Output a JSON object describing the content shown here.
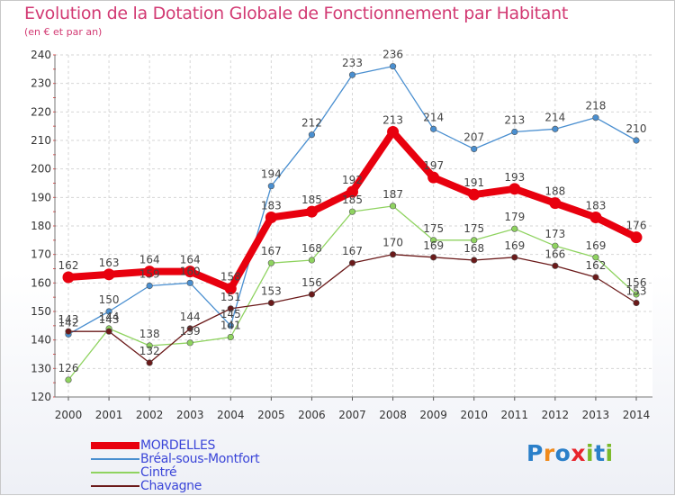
{
  "title": "Evolution de la Dotation Globale de Fonctionnement par Habitant",
  "subtitle": "(en € et par an)",
  "logo": {
    "letters": [
      "P",
      "r",
      "o",
      "x",
      "i",
      "t",
      "i"
    ],
    "colors": [
      "#2a7fc9",
      "#f08a1c",
      "#2a7fc9",
      "#e8242c",
      "#7ab929",
      "#2a7fc9",
      "#7ab929"
    ]
  },
  "chart_data": {
    "type": "line",
    "title": "Evolution de la Dotation Globale de Fonctionnement par Habitant",
    "subtitle": "(en € et par an)",
    "xlabel": "",
    "ylabel": "",
    "x": [
      "2000",
      "2001",
      "2002",
      "2003",
      "2004",
      "2005",
      "2006",
      "2007",
      "2008",
      "2009",
      "2010",
      "2011",
      "2012",
      "2013",
      "2014"
    ],
    "ylim": [
      120,
      240
    ],
    "yticks": [
      120,
      130,
      140,
      150,
      160,
      170,
      180,
      190,
      200,
      210,
      220,
      230,
      240
    ],
    "grid": true,
    "legend_position": "bottom-left",
    "series": [
      {
        "name": "MORDELLES",
        "color": "#e8000e",
        "values": [
          162,
          163,
          164,
          164,
          158,
          183,
          185,
          192,
          213,
          197,
          191,
          193,
          188,
          183,
          176
        ]
      },
      {
        "name": "Bréal-sous-Montfort",
        "color": "#4a8fd0",
        "values": [
          142,
          150,
          159,
          160,
          145,
          194,
          212,
          233,
          236,
          214,
          207,
          213,
          214,
          218,
          210
        ]
      },
      {
        "name": "Cintré",
        "color": "#8fd360",
        "values": [
          126,
          144,
          138,
          139,
          141,
          167,
          168,
          185,
          187,
          175,
          175,
          179,
          173,
          169,
          156
        ]
      },
      {
        "name": "Chavagne",
        "color": "#6b1a1a",
        "values": [
          143,
          143,
          132,
          144,
          151,
          153,
          156,
          167,
          170,
          169,
          168,
          169,
          166,
          162,
          153
        ]
      }
    ]
  }
}
